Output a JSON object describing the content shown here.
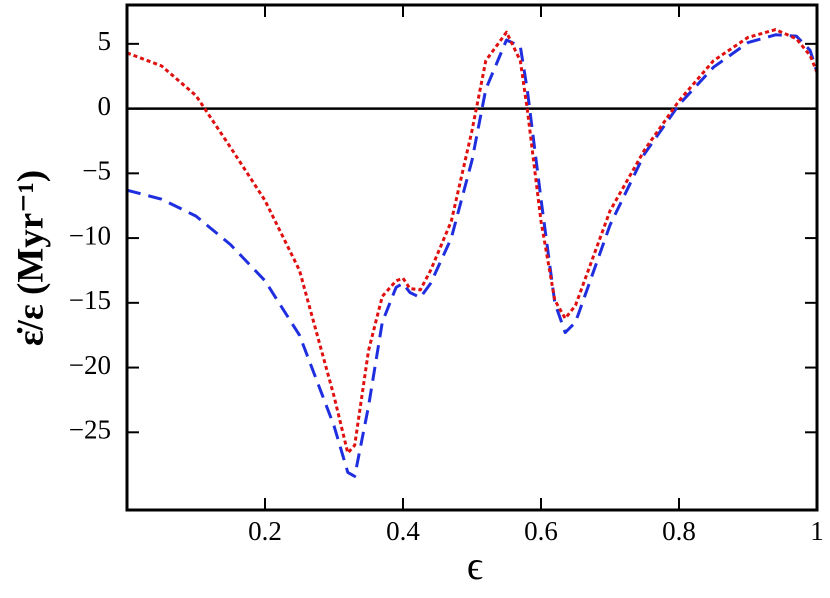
{
  "chart_data": {
    "type": "line",
    "x_label": "ϵ",
    "y_label": "ε̇/ε (Myr⁻¹)",
    "x": [
      0,
      0.05,
      0.1,
      0.15,
      0.2,
      0.25,
      0.3,
      0.32,
      0.33,
      0.35,
      0.37,
      0.39,
      0.4,
      0.41,
      0.425,
      0.44,
      0.47,
      0.5,
      0.52,
      0.55,
      0.57,
      0.58,
      0.6,
      0.62,
      0.635,
      0.65,
      0.7,
      0.75,
      0.8,
      0.85,
      0.9,
      0.94,
      0.97,
      0.99,
      1.0
    ],
    "series": [
      {
        "color": "#1f2fe0",
        "dash": "14,8",
        "values": [
          -6.3,
          -7.0,
          -8.3,
          -10.5,
          -13.3,
          -17.5,
          -24.5,
          -28.1,
          -28.4,
          -23,
          -16.5,
          -13.8,
          -13.5,
          -14.2,
          -14.6,
          -13.5,
          -10,
          -4,
          1.5,
          5.3,
          4.8,
          1.5,
          -7,
          -15,
          -17.3,
          -16.5,
          -9,
          -3.5,
          0.3,
          3.2,
          5.1,
          5.7,
          5.6,
          4.5,
          2.8
        ]
      },
      {
        "color": "#e01010",
        "dash": "4,3",
        "values": [
          4.3,
          3.3,
          1.0,
          -3.0,
          -7.1,
          -12.5,
          -22.2,
          -26.6,
          -26.0,
          -18.7,
          -14.5,
          -13.3,
          -13.1,
          -13.9,
          -14.0,
          -12.5,
          -8.7,
          -1.7,
          3.7,
          5.9,
          3.7,
          0,
          -8.7,
          -14.8,
          -16.2,
          -15.2,
          -7.9,
          -3.2,
          0.6,
          3.7,
          5.5,
          6.1,
          5.4,
          4.1,
          2.8
        ]
      }
    ],
    "hlines": [
      0
    ],
    "xlim": [
      0,
      1
    ],
    "ylim": [
      -31,
      8
    ],
    "xticks": [
      0.2,
      0.4,
      0.6,
      0.8,
      1
    ],
    "yticks": [
      {
        "value": -25,
        "label": "−25"
      },
      {
        "value": -20,
        "label": "−20"
      },
      {
        "value": -15,
        "label": "−15"
      },
      {
        "value": -10,
        "label": "−10"
      },
      {
        "value": -5,
        "label": "−5"
      },
      0,
      5
    ]
  }
}
